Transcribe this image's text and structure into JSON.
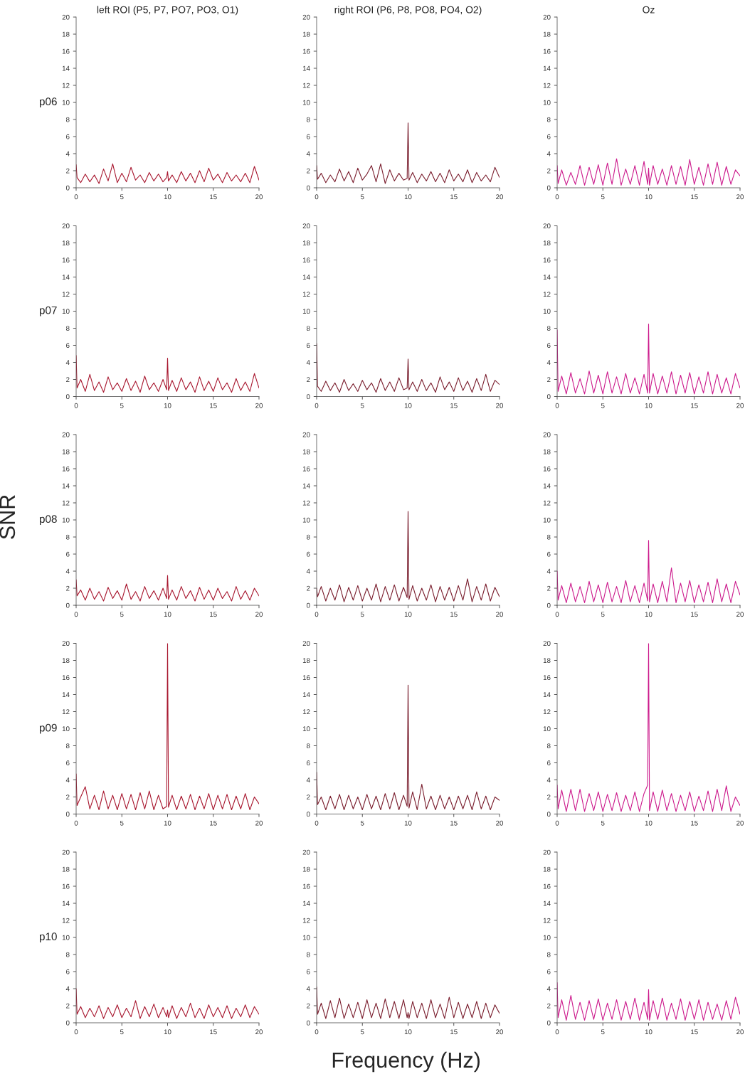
{
  "chart_data": [
    {
      "type": "line",
      "title": "left ROI (P5, P7, PO7, PO3, O1)",
      "ylabel": "p06",
      "xlim": [
        0,
        20
      ],
      "xticks": [
        0,
        5,
        10,
        15,
        20
      ],
      "ylim": [
        0,
        20
      ],
      "yticks": [
        0,
        2,
        4,
        6,
        8,
        10,
        12,
        14,
        16,
        18,
        20
      ],
      "x": [
        0,
        0.1,
        0.5,
        1,
        1.5,
        2,
        2.5,
        3,
        3.5,
        4,
        4.5,
        5,
        5.5,
        6,
        6.5,
        7,
        7.5,
        8,
        8.5,
        9,
        9.5,
        9.9,
        10,
        10.1,
        10.5,
        11,
        11.5,
        12,
        12.5,
        13,
        13.5,
        14,
        14.5,
        15,
        15.5,
        16,
        16.5,
        17,
        17.5,
        18,
        18.5,
        19,
        19.5,
        20
      ],
      "series": [
        {
          "color": "#a8172f",
          "values": [
            2.7,
            1.2,
            0.6,
            1.6,
            0.7,
            1.5,
            0.5,
            2.2,
            0.8,
            2.8,
            0.6,
            1.7,
            0.7,
            2.4,
            0.9,
            1.5,
            0.6,
            1.8,
            0.8,
            1.6,
            0.7,
            1.2,
            1.9,
            0.8,
            1.5,
            0.6,
            1.9,
            0.8,
            1.7,
            0.6,
            2.0,
            0.7,
            2.3,
            0.9,
            1.6,
            0.6,
            1.8,
            0.8,
            1.5,
            0.7,
            1.7,
            0.6,
            2.5,
            0.9
          ]
        }
      ]
    },
    {
      "type": "line",
      "title": "right ROI (P6, P8, PO8, PO4, O2)",
      "xlim": [
        0,
        20
      ],
      "xticks": [
        0,
        5,
        10,
        15,
        20
      ],
      "ylim": [
        0,
        20
      ],
      "yticks": [
        0,
        2,
        4,
        6,
        8,
        10,
        12,
        14,
        16,
        18,
        20
      ],
      "x": [
        0,
        0.1,
        0.5,
        1,
        1.5,
        2,
        2.5,
        3,
        3.5,
        4,
        4.5,
        5,
        5.5,
        6,
        6.5,
        7,
        7.5,
        8,
        8.5,
        9,
        9.5,
        9.9,
        10,
        10.1,
        10.5,
        11,
        11.5,
        12,
        12.5,
        13,
        13.5,
        14,
        14.5,
        15,
        15.5,
        16,
        16.5,
        17,
        17.5,
        18,
        18.5,
        19,
        19.5,
        20
      ],
      "series": [
        {
          "color": "#7a1e2e",
          "values": [
            2.6,
            1.0,
            1.7,
            0.6,
            1.5,
            0.7,
            2.2,
            0.8,
            1.9,
            0.6,
            2.3,
            0.9,
            1.6,
            2.6,
            0.7,
            2.8,
            0.5,
            2.1,
            0.8,
            1.7,
            0.9,
            1.1,
            7.6,
            0.9,
            1.8,
            0.6,
            1.6,
            0.8,
            1.9,
            0.7,
            1.7,
            0.6,
            2.1,
            0.8,
            1.6,
            0.7,
            2.1,
            0.6,
            1.8,
            0.8,
            1.5,
            0.7,
            2.4,
            1.2
          ]
        }
      ]
    },
    {
      "type": "line",
      "title": "Oz",
      "xlim": [
        0,
        20
      ],
      "xticks": [
        0,
        5,
        10,
        15,
        20
      ],
      "ylim": [
        0,
        20
      ],
      "yticks": [
        0,
        2,
        4,
        6,
        8,
        10,
        12,
        14,
        16,
        18,
        20
      ],
      "x": [
        0,
        0.1,
        0.5,
        1,
        1.5,
        2,
        2.5,
        3,
        3.5,
        4,
        4.5,
        5,
        5.5,
        6,
        6.5,
        7,
        7.5,
        8,
        8.5,
        9,
        9.5,
        9.9,
        10,
        10.1,
        10.5,
        11,
        11.5,
        12,
        12.5,
        13,
        13.5,
        14,
        14.5,
        15,
        15.5,
        16,
        16.5,
        17,
        17.5,
        18,
        18.5,
        19,
        19.5,
        20
      ],
      "series": [
        {
          "color": "#cc1a8c",
          "values": [
            2.6,
            0.5,
            2.1,
            0.3,
            1.8,
            0.4,
            2.6,
            0.3,
            2.4,
            0.4,
            2.7,
            0.3,
            2.9,
            0.4,
            3.4,
            0.3,
            2.2,
            0.4,
            2.6,
            0.3,
            3.1,
            0.4,
            2.3,
            0.3,
            2.6,
            0.4,
            2.2,
            0.3,
            2.6,
            0.4,
            2.5,
            0.3,
            3.3,
            0.4,
            2.4,
            0.3,
            2.8,
            0.4,
            3.0,
            0.3,
            2.5,
            0.4,
            2.1,
            1.4
          ]
        }
      ]
    },
    {
      "type": "line",
      "ylabel": "p07",
      "xlim": [
        0,
        20
      ],
      "xticks": [
        0,
        5,
        10,
        15,
        20
      ],
      "ylim": [
        0,
        20
      ],
      "yticks": [
        0,
        2,
        4,
        6,
        8,
        10,
        12,
        14,
        16,
        18,
        20
      ],
      "x": [
        0,
        0.1,
        0.5,
        1,
        1.5,
        2,
        2.5,
        3,
        3.5,
        4,
        4.5,
        5,
        5.5,
        6,
        6.5,
        7,
        7.5,
        8,
        8.5,
        9,
        9.5,
        9.9,
        10,
        10.1,
        10.5,
        11,
        11.5,
        12,
        12.5,
        13,
        13.5,
        14,
        14.5,
        15,
        15.5,
        16,
        16.5,
        17,
        17.5,
        18,
        18.5,
        19,
        19.5,
        20
      ],
      "series": [
        {
          "color": "#a8172f",
          "values": [
            4.8,
            1.0,
            2.0,
            0.6,
            2.6,
            0.7,
            1.7,
            0.5,
            2.3,
            0.8,
            1.6,
            0.6,
            2.1,
            0.7,
            1.8,
            0.5,
            2.4,
            0.8,
            1.6,
            0.6,
            2.0,
            0.8,
            4.5,
            0.7,
            1.9,
            0.6,
            2.2,
            0.8,
            1.7,
            0.5,
            2.3,
            0.7,
            1.8,
            0.6,
            2.2,
            0.8,
            1.6,
            0.5,
            2.1,
            0.7,
            1.7,
            0.6,
            2.7,
            1.0
          ]
        }
      ]
    },
    {
      "type": "line",
      "xlim": [
        0,
        20
      ],
      "xticks": [
        0,
        5,
        10,
        15,
        20
      ],
      "ylim": [
        0,
        20
      ],
      "yticks": [
        0,
        2,
        4,
        6,
        8,
        10,
        12,
        14,
        16,
        18,
        20
      ],
      "x": [
        0,
        0.1,
        0.5,
        1,
        1.5,
        2,
        2.5,
        3,
        3.5,
        4,
        4.5,
        5,
        5.5,
        6,
        6.5,
        7,
        7.5,
        8,
        8.5,
        9,
        9.5,
        9.9,
        10,
        10.1,
        10.5,
        11,
        11.5,
        12,
        12.5,
        13,
        13.5,
        14,
        14.5,
        15,
        15.5,
        16,
        16.5,
        17,
        17.5,
        18,
        18.5,
        19,
        19.5,
        20
      ],
      "series": [
        {
          "color": "#7a1e2e",
          "values": [
            6.2,
            1.2,
            0.6,
            1.8,
            0.7,
            1.6,
            0.5,
            2.0,
            0.7,
            1.5,
            0.6,
            1.9,
            0.8,
            1.6,
            0.5,
            2.1,
            0.7,
            1.7,
            0.6,
            2.2,
            0.8,
            1.0,
            4.4,
            0.8,
            1.7,
            0.6,
            2.0,
            0.7,
            1.6,
            0.5,
            2.3,
            0.8,
            1.7,
            0.6,
            2.2,
            0.7,
            1.8,
            0.5,
            2.1,
            0.7,
            2.6,
            0.6,
            1.9,
            1.4
          ]
        }
      ]
    },
    {
      "type": "line",
      "xlim": [
        0,
        20
      ],
      "xticks": [
        0,
        5,
        10,
        15,
        20
      ],
      "ylim": [
        0,
        20
      ],
      "yticks": [
        0,
        2,
        4,
        6,
        8,
        10,
        12,
        14,
        16,
        18,
        20
      ],
      "x": [
        0,
        0.1,
        0.5,
        1,
        1.5,
        2,
        2.5,
        3,
        3.5,
        4,
        4.5,
        5,
        5.5,
        6,
        6.5,
        7,
        7.5,
        8,
        8.5,
        9,
        9.5,
        9.9,
        10,
        10.1,
        10.5,
        11,
        11.5,
        12,
        12.5,
        13,
        13.5,
        14,
        14.5,
        15,
        15.5,
        16,
        16.5,
        17,
        17.5,
        18,
        18.5,
        19,
        19.5,
        20
      ],
      "series": [
        {
          "color": "#cc1a8c",
          "values": [
            7.8,
            0.6,
            2.4,
            0.3,
            2.8,
            0.4,
            2.1,
            0.3,
            3.0,
            0.4,
            2.5,
            0.3,
            2.9,
            0.4,
            2.3,
            0.3,
            2.7,
            0.4,
            2.2,
            0.3,
            2.6,
            0.4,
            8.5,
            0.4,
            2.7,
            0.3,
            2.4,
            0.4,
            2.9,
            0.3,
            2.5,
            0.4,
            2.8,
            0.3,
            2.3,
            0.4,
            2.9,
            0.3,
            2.6,
            0.4,
            2.2,
            0.3,
            2.7,
            1.0
          ]
        }
      ]
    },
    {
      "type": "line",
      "ylabel": "p08",
      "xlim": [
        0,
        20
      ],
      "xticks": [
        0,
        5,
        10,
        15,
        20
      ],
      "ylim": [
        0,
        20
      ],
      "yticks": [
        0,
        2,
        4,
        6,
        8,
        10,
        12,
        14,
        16,
        18,
        20
      ],
      "x": [
        0,
        0.1,
        0.5,
        1,
        1.5,
        2,
        2.5,
        3,
        3.5,
        4,
        4.5,
        5,
        5.5,
        6,
        6.5,
        7,
        7.5,
        8,
        8.5,
        9,
        9.5,
        9.9,
        10,
        10.1,
        10.5,
        11,
        11.5,
        12,
        12.5,
        13,
        13.5,
        14,
        14.5,
        15,
        15.5,
        16,
        16.5,
        17,
        17.5,
        18,
        18.5,
        19,
        19.5,
        20
      ],
      "series": [
        {
          "color": "#a8172f",
          "values": [
            3.0,
            1.1,
            1.8,
            0.6,
            2.0,
            0.7,
            1.6,
            0.5,
            2.1,
            0.8,
            1.7,
            0.6,
            2.5,
            0.7,
            1.6,
            0.5,
            2.2,
            0.8,
            1.7,
            0.6,
            2.0,
            0.8,
            3.5,
            0.7,
            1.8,
            0.6,
            2.2,
            0.8,
            1.7,
            0.5,
            2.1,
            0.7,
            1.8,
            0.6,
            2.0,
            0.8,
            1.6,
            0.5,
            2.2,
            0.7,
            1.7,
            0.6,
            2.0,
            1.1
          ]
        }
      ]
    },
    {
      "type": "line",
      "xlim": [
        0,
        20
      ],
      "xticks": [
        0,
        5,
        10,
        15,
        20
      ],
      "ylim": [
        0,
        20
      ],
      "yticks": [
        0,
        2,
        4,
        6,
        8,
        10,
        12,
        14,
        16,
        18,
        20
      ],
      "x": [
        0,
        0.1,
        0.5,
        1,
        1.5,
        2,
        2.5,
        3,
        3.5,
        4,
        4.5,
        5,
        5.5,
        6,
        6.5,
        7,
        7.5,
        8,
        8.5,
        9,
        9.5,
        9.9,
        10,
        10.1,
        10.5,
        11,
        11.5,
        12,
        12.5,
        13,
        13.5,
        14,
        14.5,
        15,
        15.5,
        16,
        16.5,
        17,
        17.5,
        18,
        18.5,
        19,
        19.5,
        20
      ],
      "series": [
        {
          "color": "#7a1e2e",
          "values": [
            2.0,
            1.0,
            2.2,
            0.5,
            2.0,
            0.6,
            2.4,
            0.4,
            2.1,
            0.6,
            2.3,
            0.5,
            2.0,
            0.6,
            2.5,
            0.4,
            2.2,
            0.6,
            2.4,
            0.5,
            2.1,
            0.9,
            11.0,
            0.7,
            2.3,
            0.5,
            2.0,
            0.6,
            2.4,
            0.4,
            2.2,
            0.6,
            2.1,
            0.5,
            2.3,
            0.6,
            3.1,
            0.4,
            2.2,
            0.6,
            2.5,
            0.5,
            2.1,
            1.0
          ]
        }
      ]
    },
    {
      "type": "line",
      "xlim": [
        0,
        20
      ],
      "xticks": [
        0,
        5,
        10,
        15,
        20
      ],
      "ylim": [
        0,
        20
      ],
      "yticks": [
        0,
        2,
        4,
        6,
        8,
        10,
        12,
        14,
        16,
        18,
        20
      ],
      "x": [
        0,
        0.1,
        0.5,
        1,
        1.5,
        2,
        2.5,
        3,
        3.5,
        4,
        4.5,
        5,
        5.5,
        6,
        6.5,
        7,
        7.5,
        8,
        8.5,
        9,
        9.5,
        9.9,
        10,
        10.1,
        10.5,
        11,
        11.5,
        12,
        12.5,
        13,
        13.5,
        14,
        14.5,
        15,
        15.5,
        16,
        16.5,
        17,
        17.5,
        18,
        18.5,
        19,
        19.5,
        20
      ],
      "series": [
        {
          "color": "#cc1a8c",
          "values": [
            4.0,
            0.6,
            2.3,
            0.3,
            2.6,
            0.4,
            2.2,
            0.3,
            2.8,
            0.4,
            2.4,
            0.3,
            2.7,
            0.4,
            2.2,
            0.3,
            2.9,
            0.4,
            2.3,
            0.3,
            2.6,
            0.5,
            7.6,
            0.4,
            2.5,
            0.3,
            2.8,
            0.4,
            4.4,
            0.3,
            2.6,
            0.4,
            2.9,
            0.3,
            2.4,
            0.4,
            2.7,
            0.3,
            3.1,
            0.4,
            2.5,
            0.3,
            2.8,
            1.2
          ]
        }
      ]
    },
    {
      "type": "line",
      "ylabel": "p09",
      "xlim": [
        0,
        20
      ],
      "xticks": [
        0,
        5,
        10,
        15,
        20
      ],
      "ylim": [
        0,
        20
      ],
      "yticks": [
        0,
        2,
        4,
        6,
        8,
        10,
        12,
        14,
        16,
        18,
        20
      ],
      "x": [
        0,
        0.1,
        0.5,
        1,
        1.5,
        2,
        2.5,
        3,
        3.5,
        4,
        4.5,
        5,
        5.5,
        6,
        6.5,
        7,
        7.5,
        8,
        8.5,
        9,
        9.5,
        9.9,
        10,
        10.1,
        10.5,
        11,
        11.5,
        12,
        12.5,
        13,
        13.5,
        14,
        14.5,
        15,
        15.5,
        16,
        16.5,
        17,
        17.5,
        18,
        18.5,
        19,
        19.5,
        20
      ],
      "series": [
        {
          "color": "#a8172f",
          "values": [
            4.7,
            1.0,
            2.0,
            3.2,
            0.6,
            2.2,
            0.5,
            2.7,
            0.6,
            2.2,
            0.5,
            2.4,
            0.6,
            2.3,
            0.5,
            2.5,
            0.6,
            2.7,
            0.5,
            2.2,
            0.6,
            0.9,
            20.0,
            0.8,
            2.2,
            0.5,
            2.1,
            0.6,
            2.3,
            0.5,
            2.1,
            0.6,
            2.4,
            0.5,
            2.2,
            0.6,
            2.3,
            0.5,
            2.1,
            0.6,
            2.4,
            0.5,
            2.0,
            1.2
          ]
        }
      ]
    },
    {
      "type": "line",
      "xlim": [
        0,
        20
      ],
      "xticks": [
        0,
        5,
        10,
        15,
        20
      ],
      "ylim": [
        0,
        20
      ],
      "yticks": [
        0,
        2,
        4,
        6,
        8,
        10,
        12,
        14,
        16,
        18,
        20
      ],
      "x": [
        0,
        0.1,
        0.5,
        1,
        1.5,
        2,
        2.5,
        3,
        3.5,
        4,
        4.5,
        5,
        5.5,
        6,
        6.5,
        7,
        7.5,
        8,
        8.5,
        9,
        9.5,
        9.9,
        10,
        10.1,
        10.5,
        11,
        11.5,
        12,
        12.5,
        13,
        13.5,
        14,
        14.5,
        15,
        15.5,
        16,
        16.5,
        17,
        17.5,
        18,
        18.5,
        19,
        19.5,
        20
      ],
      "series": [
        {
          "color": "#7a1e2e",
          "values": [
            4.9,
            1.1,
            2.0,
            0.5,
            2.1,
            0.6,
            2.3,
            0.5,
            2.2,
            0.6,
            2.0,
            0.5,
            2.3,
            0.6,
            2.1,
            0.5,
            2.4,
            0.6,
            2.5,
            0.5,
            2.2,
            0.9,
            15.1,
            0.7,
            2.6,
            0.5,
            3.5,
            0.6,
            2.1,
            0.5,
            2.2,
            0.6,
            2.0,
            0.5,
            2.1,
            0.6,
            2.2,
            0.5,
            2.6,
            0.6,
            2.1,
            0.5,
            2.0,
            1.6
          ]
        }
      ]
    },
    {
      "type": "line",
      "xlim": [
        0,
        20
      ],
      "xticks": [
        0,
        5,
        10,
        15,
        20
      ],
      "ylim": [
        0,
        20
      ],
      "yticks": [
        0,
        2,
        4,
        6,
        8,
        10,
        12,
        14,
        16,
        18,
        20
      ],
      "x": [
        0,
        0.1,
        0.5,
        1,
        1.5,
        2,
        2.5,
        3,
        3.5,
        4,
        4.5,
        5,
        5.5,
        6,
        6.5,
        7,
        7.5,
        8,
        8.5,
        9,
        9.5,
        9.9,
        10,
        10.1,
        10.5,
        11,
        11.5,
        12,
        12.5,
        13,
        13.5,
        14,
        14.5,
        15,
        15.5,
        16,
        16.5,
        17,
        17.5,
        18,
        18.5,
        19,
        19.5,
        20
      ],
      "series": [
        {
          "color": "#cc1a8c",
          "values": [
            3.4,
            0.6,
            2.8,
            0.3,
            2.9,
            0.4,
            2.9,
            0.3,
            2.4,
            0.4,
            2.6,
            0.3,
            2.3,
            0.4,
            2.5,
            0.3,
            2.2,
            0.4,
            2.6,
            0.3,
            2.4,
            3.4,
            20.0,
            0.4,
            2.6,
            0.3,
            2.8,
            0.4,
            2.4,
            0.3,
            2.2,
            0.4,
            2.6,
            0.3,
            2.1,
            0.4,
            2.7,
            0.3,
            2.9,
            0.4,
            3.3,
            0.3,
            2.0,
            1.0
          ]
        }
      ]
    },
    {
      "type": "line",
      "ylabel": "p10",
      "xlim": [
        0,
        20
      ],
      "xticks": [
        0,
        5,
        10,
        15,
        20
      ],
      "ylim": [
        0,
        20
      ],
      "yticks": [
        0,
        2,
        4,
        6,
        8,
        10,
        12,
        14,
        16,
        18,
        20
      ],
      "x": [
        0,
        0.1,
        0.5,
        1,
        1.5,
        2,
        2.5,
        3,
        3.5,
        4,
        4.5,
        5,
        5.5,
        6,
        6.5,
        7,
        7.5,
        8,
        8.5,
        9,
        9.5,
        9.9,
        10,
        10.1,
        10.5,
        11,
        11.5,
        12,
        12.5,
        13,
        13.5,
        14,
        14.5,
        15,
        15.5,
        16,
        16.5,
        17,
        17.5,
        18,
        18.5,
        19,
        19.5,
        20
      ],
      "series": [
        {
          "color": "#a8172f",
          "values": [
            4.0,
            1.0,
            1.9,
            0.6,
            1.7,
            0.7,
            2.0,
            0.5,
            1.8,
            0.7,
            2.1,
            0.6,
            1.7,
            0.7,
            2.6,
            0.5,
            1.9,
            0.7,
            2.2,
            0.6,
            1.8,
            0.7,
            1.5,
            0.6,
            2.0,
            0.5,
            1.8,
            0.7,
            2.3,
            0.6,
            1.7,
            0.5,
            2.1,
            0.7,
            1.8,
            0.6,
            2.0,
            0.5,
            1.7,
            0.7,
            2.1,
            0.6,
            1.9,
            1.0
          ]
        }
      ]
    },
    {
      "type": "line",
      "xlim": [
        0,
        20
      ],
      "xticks": [
        0,
        5,
        10,
        15,
        20
      ],
      "ylim": [
        0,
        20
      ],
      "yticks": [
        0,
        2,
        4,
        6,
        8,
        10,
        12,
        14,
        16,
        18,
        20
      ],
      "x": [
        0,
        0.1,
        0.5,
        1,
        1.5,
        2,
        2.5,
        3,
        3.5,
        4,
        4.5,
        5,
        5.5,
        6,
        6.5,
        7,
        7.5,
        8,
        8.5,
        9,
        9.5,
        9.9,
        10,
        10.1,
        10.5,
        11,
        11.5,
        12,
        12.5,
        13,
        13.5,
        14,
        14.5,
        15,
        15.5,
        16,
        16.5,
        17,
        17.5,
        18,
        18.5,
        19,
        19.5,
        20
      ],
      "series": [
        {
          "color": "#7a1e2e",
          "values": [
            4.2,
            1.0,
            2.3,
            0.5,
            2.6,
            0.6,
            2.9,
            0.5,
            2.2,
            0.6,
            2.4,
            0.5,
            2.7,
            0.6,
            2.3,
            0.5,
            2.8,
            0.6,
            2.5,
            0.5,
            2.7,
            0.6,
            1.2,
            0.5,
            2.5,
            0.6,
            2.3,
            0.5,
            2.7,
            0.6,
            2.2,
            0.5,
            3.0,
            0.6,
            2.4,
            0.5,
            2.2,
            0.6,
            2.5,
            0.5,
            2.3,
            0.6,
            2.1,
            1.1
          ]
        }
      ]
    },
    {
      "type": "line",
      "xlim": [
        0,
        20
      ],
      "xticks": [
        0,
        5,
        10,
        15,
        20
      ],
      "ylim": [
        0,
        20
      ],
      "yticks": [
        0,
        2,
        4,
        6,
        8,
        10,
        12,
        14,
        16,
        18,
        20
      ],
      "x": [
        0,
        0.1,
        0.5,
        1,
        1.5,
        2,
        2.5,
        3,
        3.5,
        4,
        4.5,
        5,
        5.5,
        6,
        6.5,
        7,
        7.5,
        8,
        8.5,
        9,
        9.5,
        9.9,
        10,
        10.1,
        10.5,
        11,
        11.5,
        12,
        12.5,
        13,
        13.5,
        14,
        14.5,
        15,
        15.5,
        16,
        16.5,
        17,
        17.5,
        18,
        18.5,
        19,
        19.5,
        20
      ],
      "series": [
        {
          "color": "#cc1a8c",
          "values": [
            4.7,
            0.6,
            2.7,
            0.3,
            3.2,
            0.4,
            2.4,
            0.3,
            2.6,
            0.4,
            2.8,
            0.3,
            2.3,
            0.4,
            2.7,
            0.3,
            2.5,
            0.4,
            2.9,
            0.3,
            2.4,
            0.4,
            3.9,
            0.3,
            2.6,
            0.4,
            2.9,
            0.3,
            2.3,
            0.4,
            2.8,
            0.3,
            2.5,
            0.4,
            2.7,
            0.3,
            2.4,
            0.4,
            2.2,
            0.3,
            2.6,
            0.4,
            3.0,
            1.0
          ]
        }
      ]
    },
    {
      "type": "other",
      "xlabel": "Frequency (Hz)",
      "ylabel": "SNR"
    }
  ]
}
